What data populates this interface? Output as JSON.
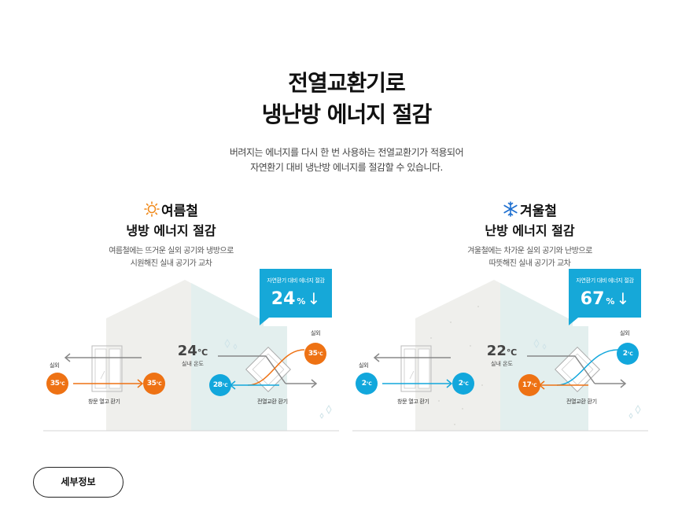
{
  "header": {
    "title_line1": "전열교환기로",
    "title_line2": "냉난방 에너지 절감",
    "subtitle_line1": "버려지는 에너지를 다시 한 번 사용하는 전열교환기가 적용되어",
    "subtitle_line2": "자연환기 대비 냉난방 에너지를 절감할 수 있습니다."
  },
  "summer": {
    "icon": "sun-icon",
    "season": "여름철",
    "title": "냉방 에너지 절감",
    "desc_line1": "여름철에는 뜨거운 실외 공기와 냉방으로",
    "desc_line2": "시원해진 실내 공기가 교차",
    "badge_label": "자연환기 대비 에너지 절감",
    "badge_value": "24",
    "badge_unit": "%",
    "badge_arrow": "↓",
    "indoor_temp": "24",
    "indoor_unit": "℃",
    "indoor_label": "실내 온도",
    "outdoor_label_left": "실외",
    "outdoor_label_right": "실외",
    "window_outdoor_temp": "35",
    "window_indoor_temp": "35",
    "erv_outdoor_temp": "35",
    "erv_indoor_temp": "28",
    "temp_unit": "℃",
    "window_caption": "창문 열고 환기",
    "erv_caption": "전열교환 환기",
    "accent_warm": "#ee7214",
    "accent_cool": "#12a7dc"
  },
  "winter": {
    "icon": "snowflake-icon",
    "season": "겨울철",
    "title": "난방 에너지 절감",
    "desc_line1": "겨울철에는 차가운 실외 공기와 난방으로",
    "desc_line2": "따뜻해진 실내 공기가 교차",
    "badge_label": "자연환기 대비 에너지 절감",
    "badge_value": "67",
    "badge_unit": "%",
    "badge_arrow": "↓",
    "indoor_temp": "22",
    "indoor_unit": "℃",
    "indoor_label": "실내 온도",
    "outdoor_label_left": "실외",
    "outdoor_label_right": "실외",
    "window_outdoor_temp": "2",
    "window_indoor_temp": "2",
    "erv_outdoor_temp": "2",
    "erv_indoor_temp": "17",
    "temp_unit": "℃",
    "window_caption": "창문 열고 환기",
    "erv_caption": "전열교환 환기",
    "badge_color": "#16a8d8"
  },
  "detail_button": {
    "label": "세부정보"
  }
}
